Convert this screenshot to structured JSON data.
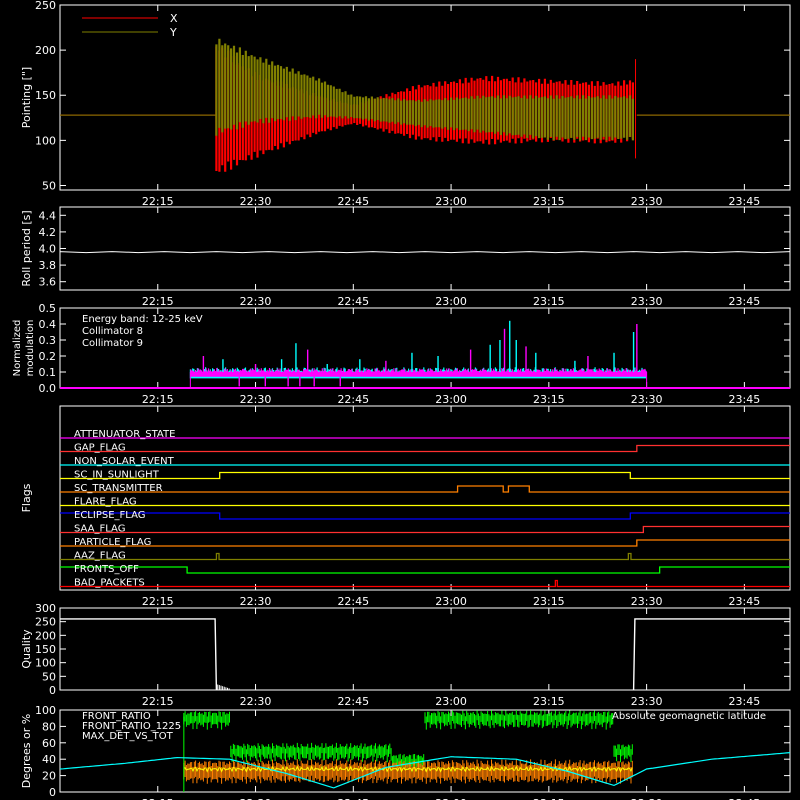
{
  "x_ticks": [
    "22:15",
    "22:30",
    "22:45",
    "23:00",
    "23:15",
    "23:30",
    "23:45"
  ],
  "x_tick_values_min": [
    15,
    30,
    45,
    60,
    75,
    90,
    105
  ],
  "x_range_min": [
    0,
    112
  ],
  "chart_data": [
    {
      "type": "line",
      "id": "pointing",
      "title": "",
      "ylabel": "Pointing [\"]",
      "ylim": [
        45,
        250
      ],
      "yticks": [
        50,
        100,
        150,
        200,
        250
      ],
      "legend": [
        {
          "name": "X",
          "color": "#ff0000"
        },
        {
          "name": "Y",
          "color": "#808000"
        }
      ],
      "series": [
        {
          "name": "X",
          "color": "#ff0000",
          "baseline": 128,
          "envelope": [
            [
              24,
              60,
              210
            ],
            [
              30,
              80,
              175
            ],
            [
              40,
              108,
              150
            ],
            [
              45,
              118,
              140
            ],
            [
              55,
              100,
              162
            ],
            [
              65,
              95,
              172
            ],
            [
              75,
              98,
              168
            ],
            [
              85,
              96,
              165
            ],
            [
              88,
              100,
              168
            ]
          ]
        },
        {
          "name": "Y",
          "color": "#808000",
          "baseline": 128,
          "envelope": [
            [
              24,
              105,
              215
            ],
            [
              30,
              118,
              195
            ],
            [
              40,
              125,
              168
            ],
            [
              45,
              124,
              150
            ],
            [
              55,
              115,
              145
            ],
            [
              65,
              108,
              150
            ],
            [
              75,
              100,
              150
            ],
            [
              85,
              100,
              150
            ],
            [
              88,
              100,
              150
            ]
          ]
        }
      ]
    },
    {
      "type": "line",
      "id": "roll",
      "ylabel": "Roll period [s]",
      "ylim": [
        3.5,
        4.5
      ],
      "yticks": [
        3.6,
        3.8,
        4.0,
        4.2,
        4.4
      ],
      "series": [
        {
          "name": "",
          "color": "#ffffff",
          "values_const": 3.95
        }
      ]
    },
    {
      "type": "bar",
      "id": "modulation",
      "ylabel": "Normalized modulation",
      "ylim": [
        0,
        0.5
      ],
      "yticks": [
        0.0,
        0.1,
        0.2,
        0.3,
        0.4,
        0.5
      ],
      "annotations": [
        "Energy band: 12-25 keV"
      ],
      "legend": [
        {
          "name": "Collimator 8",
          "color": "#00ffff"
        },
        {
          "name": "Collimator 9",
          "color": "#ff00ff"
        }
      ],
      "spikes": [
        [
          22,
          0.2
        ],
        [
          25,
          0.18
        ],
        [
          26.5,
          0.12
        ],
        [
          30,
          0.15
        ],
        [
          34,
          0.18
        ],
        [
          36.2,
          0.28
        ],
        [
          38,
          0.24
        ],
        [
          41,
          0.15
        ],
        [
          46,
          0.18
        ],
        [
          50,
          0.17
        ],
        [
          54,
          0.22
        ],
        [
          58,
          0.2
        ],
        [
          63,
          0.24
        ],
        [
          66,
          0.27
        ],
        [
          67.5,
          0.3
        ],
        [
          68.2,
          0.37
        ],
        [
          69,
          0.42
        ],
        [
          70,
          0.3
        ],
        [
          71.5,
          0.26
        ],
        [
          73,
          0.22
        ],
        [
          79,
          0.17
        ],
        [
          81,
          0.2
        ],
        [
          85,
          0.22
        ],
        [
          88,
          0.35
        ],
        [
          88.5,
          0.4
        ]
      ],
      "base_level": 0.1,
      "active_range": [
        20,
        90
      ]
    },
    {
      "type": "table",
      "id": "flags",
      "ylabel": "Flags",
      "rows": [
        {
          "name": "ATTENUATOR_STATE",
          "color": "#ff00ff",
          "steps": [
            [
              0,
              0
            ]
          ]
        },
        {
          "name": "GAP_FLAG",
          "color": "#ff3030",
          "steps": [
            [
              0,
              0
            ],
            [
              88.5,
              1
            ]
          ]
        },
        {
          "name": "NON_SOLAR_EVENT",
          "color": "#00ffff",
          "steps": [
            [
              0,
              0
            ]
          ]
        },
        {
          "name": "SC_IN_SUNLIGHT",
          "color": "#ffff00",
          "steps": [
            [
              0,
              0
            ],
            [
              24.5,
              1
            ],
            [
              87.5,
              0
            ]
          ]
        },
        {
          "name": "SC_TRANSMITTER",
          "color": "#ff8000",
          "steps": [
            [
              0,
              0
            ],
            [
              61,
              1
            ],
            [
              68,
              0
            ],
            [
              68.8,
              1
            ],
            [
              72,
              0
            ]
          ]
        },
        {
          "name": "FLARE_FLAG",
          "color": "#ffff00",
          "steps": [
            [
              0,
              0
            ]
          ]
        },
        {
          "name": "ECLIPSE_FLAG",
          "color": "#0000ff",
          "steps": [
            [
              0,
              1
            ],
            [
              24.5,
              0
            ],
            [
              87.5,
              1
            ]
          ]
        },
        {
          "name": "SAA_FLAG",
          "color": "#ff3030",
          "steps": [
            [
              0,
              0
            ],
            [
              89.5,
              1
            ]
          ]
        },
        {
          "name": "PARTICLE_FLAG",
          "color": "#ff8000",
          "steps": [
            [
              0,
              0
            ],
            [
              88.5,
              1
            ]
          ]
        },
        {
          "name": "AAZ_FLAG",
          "color": "#808000",
          "steps": [
            [
              0,
              0
            ],
            [
              24,
              1
            ],
            [
              24.4,
              0
            ],
            [
              87.2,
              1
            ],
            [
              87.6,
              0
            ]
          ]
        },
        {
          "name": "FRONTS_OFF",
          "color": "#00ff00",
          "steps": [
            [
              0,
              1
            ],
            [
              19.5,
              0
            ],
            [
              92,
              1
            ]
          ]
        },
        {
          "name": "BAD_PACKETS",
          "color": "#ff0000",
          "steps": [
            [
              0,
              0
            ],
            [
              76,
              1
            ],
            [
              76.3,
              0
            ]
          ]
        }
      ]
    },
    {
      "type": "line",
      "id": "quality",
      "ylabel": "Quality",
      "ylim": [
        0,
        300
      ],
      "yticks": [
        0,
        50,
        100,
        150,
        200,
        250,
        300
      ],
      "segments": [
        [
          [
            0,
            260
          ],
          [
            23.8,
            260
          ],
          [
            24,
            0
          ]
        ],
        [
          [
            88,
            0
          ],
          [
            88.2,
            260
          ],
          [
            112,
            260
          ]
        ]
      ]
    },
    {
      "type": "line",
      "id": "ratios",
      "ylabel": "Degrees or %",
      "ylim": [
        0,
        100
      ],
      "yticks": [
        0,
        20,
        40,
        60,
        80,
        100
      ],
      "legend": [
        {
          "name": "FRONT_RATIO",
          "color": "#ffff00"
        },
        {
          "name": "FRONT_RATIO_1225",
          "color": "#00ff00"
        },
        {
          "name": "MAX_DET_VS_TOT",
          "color": "#ff8000"
        }
      ],
      "annotation": "Absolute geomagnetic latitude",
      "annotation_color": "#00ffff",
      "green_levels": [
        [
          19,
          92
        ],
        [
          26,
          52
        ],
        [
          51,
          40
        ],
        [
          56,
          92
        ],
        [
          85,
          52
        ],
        [
          88,
          70
        ]
      ],
      "orange_level": 25,
      "yellow_level": 28,
      "active_range": [
        19,
        88
      ],
      "lat_points": [
        [
          0,
          28
        ],
        [
          10,
          35
        ],
        [
          18,
          42
        ],
        [
          26,
          40
        ],
        [
          35,
          22
        ],
        [
          42,
          5
        ],
        [
          50,
          30
        ],
        [
          60,
          43
        ],
        [
          70,
          40
        ],
        [
          78,
          25
        ],
        [
          85,
          8
        ],
        [
          90,
          28
        ],
        [
          100,
          40
        ],
        [
          112,
          48
        ]
      ]
    }
  ]
}
